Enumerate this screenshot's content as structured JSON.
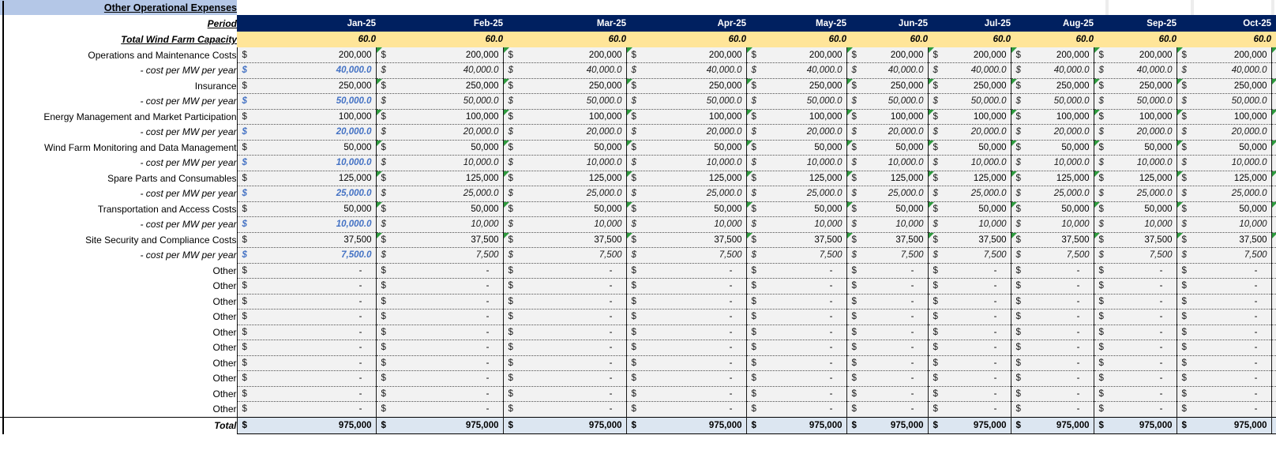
{
  "title": "Other Operational Expenses",
  "currency_symbol": "$",
  "header": {
    "period_label": "Period",
    "months": [
      "Jan-25",
      "Feb-25",
      "Mar-25",
      "Apr-25",
      "May-25",
      "Jun-25",
      "Jul-25",
      "Aug-25",
      "Sep-25",
      "Oct-25"
    ]
  },
  "capacity": {
    "label": "Total Wind Farm Capacity",
    "values": [
      "60.0",
      "60.0",
      "60.0",
      "60.0",
      "60.0",
      "60.0",
      "60.0",
      "60.0",
      "60.0",
      "60.0"
    ]
  },
  "rows": [
    {
      "label": "Operations and Maintenance Costs",
      "type": "main",
      "values": [
        "200,000",
        "200,000",
        "200,000",
        "200,000",
        "200,000",
        "200,000",
        "200,000",
        "200,000",
        "200,000",
        "200,000"
      ]
    },
    {
      "label": "- cost per MW per year",
      "type": "permw",
      "values": [
        "40,000.0",
        "40,000.0",
        "40,000.0",
        "40,000.0",
        "40,000.0",
        "40,000.0",
        "40,000.0",
        "40,000.0",
        "40,000.0",
        "40,000.0"
      ]
    },
    {
      "label": "Insurance",
      "type": "main",
      "values": [
        "250,000",
        "250,000",
        "250,000",
        "250,000",
        "250,000",
        "250,000",
        "250,000",
        "250,000",
        "250,000",
        "250,000"
      ]
    },
    {
      "label": "- cost per MW per year",
      "type": "permw",
      "values": [
        "50,000.0",
        "50,000.0",
        "50,000.0",
        "50,000.0",
        "50,000.0",
        "50,000.0",
        "50,000.0",
        "50,000.0",
        "50,000.0",
        "50,000.0"
      ]
    },
    {
      "label": "Energy Management and Market Participation",
      "type": "main",
      "values": [
        "100,000",
        "100,000",
        "100,000",
        "100,000",
        "100,000",
        "100,000",
        "100,000",
        "100,000",
        "100,000",
        "100,000"
      ]
    },
    {
      "label": "- cost per MW per year",
      "type": "permw",
      "values": [
        "20,000.0",
        "20,000.0",
        "20,000.0",
        "20,000.0",
        "20,000.0",
        "20,000.0",
        "20,000.0",
        "20,000.0",
        "20,000.0",
        "20,000.0"
      ]
    },
    {
      "label": "Wind Farm Monitoring and Data Management",
      "type": "main",
      "values": [
        "50,000",
        "50,000",
        "50,000",
        "50,000",
        "50,000",
        "50,000",
        "50,000",
        "50,000",
        "50,000",
        "50,000"
      ]
    },
    {
      "label": "- cost per MW per year",
      "type": "permw",
      "values": [
        "10,000.0",
        "10,000.0",
        "10,000.0",
        "10,000.0",
        "10,000.0",
        "10,000.0",
        "10,000.0",
        "10,000.0",
        "10,000.0",
        "10,000.0"
      ]
    },
    {
      "label": "Spare Parts and Consumables",
      "type": "main",
      "values": [
        "125,000",
        "125,000",
        "125,000",
        "125,000",
        "125,000",
        "125,000",
        "125,000",
        "125,000",
        "125,000",
        "125,000"
      ]
    },
    {
      "label": "- cost per MW per year",
      "type": "permw",
      "values": [
        "25,000.0",
        "25,000.0",
        "25,000.0",
        "25,000.0",
        "25,000.0",
        "25,000.0",
        "25,000.0",
        "25,000.0",
        "25,000.0",
        "25,000.0"
      ]
    },
    {
      "label": "Transportation and Access Costs",
      "type": "main",
      "values": [
        "50,000",
        "50,000",
        "50,000",
        "50,000",
        "50,000",
        "50,000",
        "50,000",
        "50,000",
        "50,000",
        "50,000"
      ]
    },
    {
      "label": "- cost per MW per year",
      "type": "permw",
      "values": [
        "10,000.0",
        "10,000",
        "10,000",
        "10,000",
        "10,000",
        "10,000",
        "10,000",
        "10,000",
        "10,000",
        "10,000"
      ]
    },
    {
      "label": "Site Security and Compliance Costs",
      "type": "main",
      "values": [
        "37,500",
        "37,500",
        "37,500",
        "37,500",
        "37,500",
        "37,500",
        "37,500",
        "37,500",
        "37,500",
        "37,500"
      ]
    },
    {
      "label": "- cost per MW per year",
      "type": "permw",
      "values": [
        "7,500.0",
        "7,500",
        "7,500",
        "7,500",
        "7,500",
        "7,500",
        "7,500",
        "7,500",
        "7,500",
        "7,500"
      ]
    },
    {
      "label": "Other",
      "type": "other",
      "values": [
        "-",
        "-",
        "-",
        "-",
        "-",
        "-",
        "-",
        "-",
        "-",
        "-"
      ]
    },
    {
      "label": "Other",
      "type": "other",
      "values": [
        "-",
        "-",
        "-",
        "-",
        "-",
        "-",
        "-",
        "-",
        "-",
        "-"
      ]
    },
    {
      "label": "Other",
      "type": "other",
      "values": [
        "-",
        "-",
        "-",
        "-",
        "-",
        "-",
        "-",
        "-",
        "-",
        "-"
      ]
    },
    {
      "label": "Other",
      "type": "other",
      "values": [
        "-",
        "-",
        "-",
        "-",
        "-",
        "-",
        "-",
        "-",
        "-",
        "-"
      ]
    },
    {
      "label": "Other",
      "type": "other",
      "values": [
        "-",
        "-",
        "-",
        "-",
        "-",
        "-",
        "-",
        "-",
        "-",
        "-"
      ]
    },
    {
      "label": "Other",
      "type": "other",
      "values": [
        "-",
        "-",
        "-",
        "-",
        "-",
        "-",
        "-",
        "-",
        "-",
        "-"
      ]
    },
    {
      "label": "Other",
      "type": "other",
      "values": [
        "-",
        "-",
        "-",
        "-",
        "-",
        "-",
        "-",
        "-",
        "-",
        "-"
      ]
    },
    {
      "label": "Other",
      "type": "other",
      "values": [
        "-",
        "-",
        "-",
        "-",
        "-",
        "-",
        "-",
        "-",
        "-",
        "-"
      ]
    },
    {
      "label": "Other",
      "type": "other",
      "values": [
        "-",
        "-",
        "-",
        "-",
        "-",
        "-",
        "-",
        "-",
        "-",
        "-"
      ]
    },
    {
      "label": "Other",
      "type": "other",
      "values": [
        "-",
        "-",
        "-",
        "-",
        "-",
        "-",
        "-",
        "-",
        "-",
        "-"
      ]
    }
  ],
  "total": {
    "label": "Total",
    "values": [
      "975,000",
      "975,000",
      "975,000",
      "975,000",
      "975,000",
      "975,000",
      "975,000",
      "975,000",
      "975,000",
      "975,000"
    ]
  },
  "colors": {
    "period_header_bg": "#002060",
    "period_header_text": "#FFFFFF",
    "capacity_bg": "#FFE599",
    "title_bg": "#B4C7E7",
    "value_cell_bg": "#F2F2F2",
    "total_row_bg": "#DCE6F1",
    "input_text_blue": "#4472C4",
    "error_flag_green": "#2E9B3E"
  }
}
